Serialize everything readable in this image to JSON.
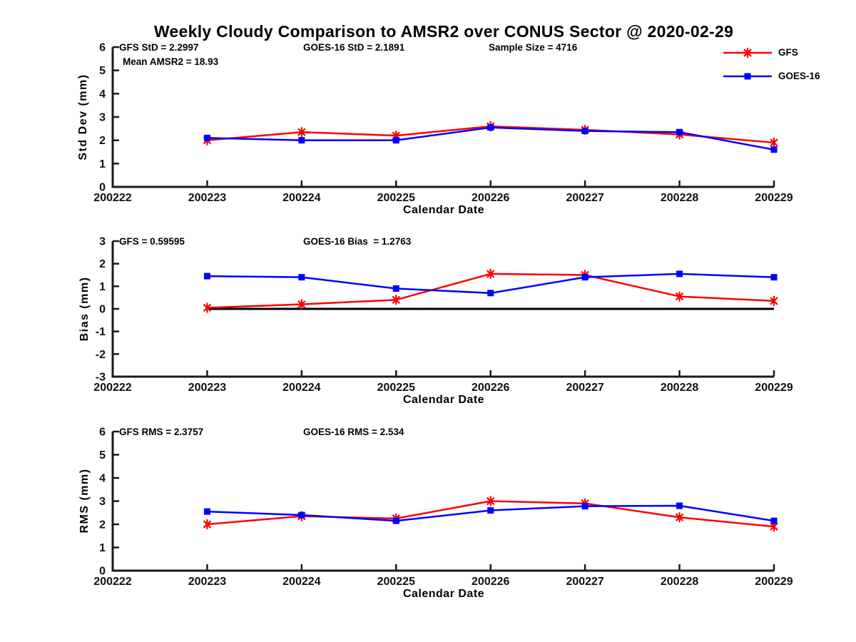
{
  "title": "Weekly Cloudy Comparison to AMSR2 over CONUS Sector @ 2020-02-29",
  "colors": {
    "gfs": "#ff0000",
    "goes16": "#0000ff",
    "axis": "#1a1a1a",
    "zero_line": "#000000"
  },
  "legend": {
    "entries": [
      {
        "label": "GFS",
        "color": "#ff0000",
        "marker": "asterisk"
      },
      {
        "label": "GOES-16",
        "color": "#0000ff",
        "marker": "square"
      }
    ]
  },
  "chart_data": [
    {
      "id": "std-dev",
      "type": "line",
      "xlabel": "Calendar Date",
      "ylabel": "Std Dev (mm)",
      "ylim": [
        0,
        6
      ],
      "yticks": [
        0,
        1,
        2,
        3,
        4,
        5,
        6
      ],
      "categories": [
        "200222",
        "200223",
        "200224",
        "200225",
        "200226",
        "200227",
        "200228",
        "200229"
      ],
      "x": [
        "200223",
        "200224",
        "200225",
        "200226",
        "200227",
        "200228",
        "200229"
      ],
      "series": [
        {
          "name": "GFS",
          "color": "#ff0000",
          "marker": "asterisk",
          "values": [
            2.0,
            2.35,
            2.2,
            2.6,
            2.45,
            2.25,
            1.9
          ]
        },
        {
          "name": "GOES-16",
          "color": "#0000ff",
          "marker": "square",
          "values": [
            2.1,
            2.0,
            2.0,
            2.55,
            2.4,
            2.35,
            1.6
          ]
        }
      ],
      "stats": {
        "gfs_std": "GFS StD = 2.2997",
        "mean_amsr2": "Mean AMSR2 = 18.93",
        "goes_std": "GOES-16 StD = 2.1891",
        "sample_size": "Sample Size = 4716"
      }
    },
    {
      "id": "bias",
      "type": "line",
      "xlabel": "Calendar Date",
      "ylabel": "Bias (mm)",
      "ylim": [
        -3,
        3
      ],
      "yticks": [
        -3,
        -2,
        -1,
        0,
        1,
        2,
        3
      ],
      "zero_line": true,
      "categories": [
        "200222",
        "200223",
        "200224",
        "200225",
        "200226",
        "200227",
        "200228",
        "200229"
      ],
      "x": [
        "200223",
        "200224",
        "200225",
        "200226",
        "200227",
        "200228",
        "200229"
      ],
      "series": [
        {
          "name": "GFS",
          "color": "#ff0000",
          "marker": "asterisk",
          "values": [
            0.05,
            0.2,
            0.4,
            1.55,
            1.5,
            0.55,
            0.35
          ]
        },
        {
          "name": "GOES-16",
          "color": "#0000ff",
          "marker": "square",
          "values": [
            1.45,
            1.4,
            0.9,
            0.7,
            1.4,
            1.55,
            1.4
          ]
        }
      ],
      "stats": {
        "gfs_bias": "GFS = 0.59595",
        "goes_bias": "GOES-16 Bias  = 1.2763"
      }
    },
    {
      "id": "rms",
      "type": "line",
      "xlabel": "Calendar Date",
      "ylabel": "RMS (mm)",
      "ylim": [
        0,
        6
      ],
      "yticks": [
        0,
        1,
        2,
        3,
        4,
        5,
        6
      ],
      "categories": [
        "200222",
        "200223",
        "200224",
        "200225",
        "200226",
        "200227",
        "200228",
        "200229"
      ],
      "x": [
        "200223",
        "200224",
        "200225",
        "200226",
        "200227",
        "200228",
        "200229"
      ],
      "series": [
        {
          "name": "GFS",
          "color": "#ff0000",
          "marker": "asterisk",
          "values": [
            2.0,
            2.35,
            2.25,
            3.0,
            2.9,
            2.3,
            1.9
          ]
        },
        {
          "name": "GOES-16",
          "color": "#0000ff",
          "marker": "square",
          "values": [
            2.55,
            2.4,
            2.15,
            2.6,
            2.78,
            2.8,
            2.15
          ]
        }
      ],
      "stats": {
        "gfs_rms": "GFS RMS = 2.3757",
        "goes_rms": "GOES-16 RMS = 2.534"
      }
    }
  ]
}
